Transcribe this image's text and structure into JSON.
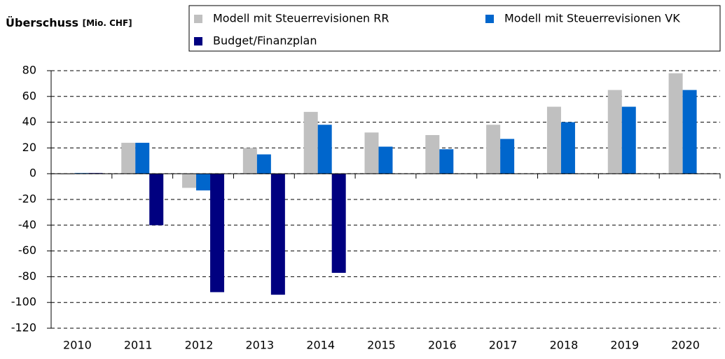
{
  "chart_data": {
    "type": "bar",
    "title": "Überschuss",
    "unit": "[Mio. CHF]",
    "categories": [
      "2010",
      "2011",
      "2012",
      "2013",
      "2014",
      "2015",
      "2016",
      "2017",
      "2018",
      "2019",
      "2020"
    ],
    "series": [
      {
        "name": "Modell mit Steuerrevisionen RR",
        "color": "#c0c0c0",
        "values": [
          0,
          24,
          -11,
          20,
          48,
          32,
          30,
          38,
          52,
          65,
          78
        ]
      },
      {
        "name": "Modell mit Steuerrevisionen VK",
        "color": "#0066cc",
        "values": [
          0.5,
          24,
          -13,
          15,
          38,
          21,
          19,
          27,
          40,
          52,
          65
        ]
      },
      {
        "name": "Budget/Finanzplan",
        "color": "#000080",
        "values": [
          0.5,
          -40,
          -92,
          -94,
          -77,
          null,
          null,
          null,
          null,
          null,
          null
        ]
      }
    ],
    "ylim": [
      -120,
      80
    ],
    "yticks": [
      -120,
      -100,
      -80,
      -60,
      -40,
      -20,
      0,
      20,
      40,
      60,
      80
    ],
    "grid": true
  }
}
